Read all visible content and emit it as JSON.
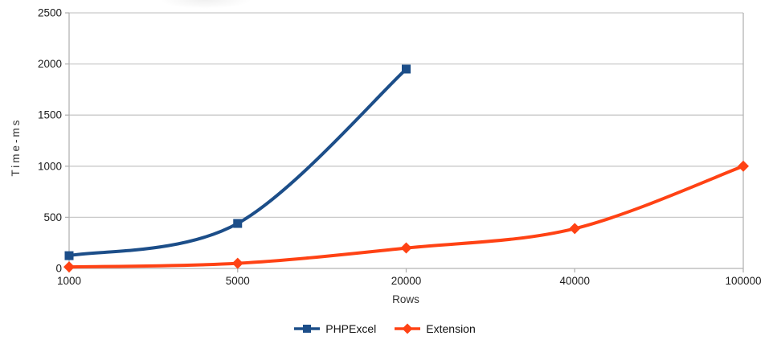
{
  "chart_data": {
    "type": "line",
    "title": "",
    "categories": [
      "1000",
      "5000",
      "20000",
      "40000",
      "100000"
    ],
    "series": [
      {
        "name": "PHPExcel",
        "color": "#1c4e89",
        "marker": "square",
        "values": [
          125,
          440,
          1950
        ]
      },
      {
        "name": "Extension",
        "color": "#ff4214",
        "marker": "diamond",
        "values": [
          15,
          50,
          200,
          390,
          1000
        ]
      }
    ],
    "xlabel": "Rows",
    "ylabel": "Time-ms",
    "ylim": [
      0,
      2500
    ],
    "yticks": [
      0,
      500,
      1000,
      1500,
      2000,
      2500
    ],
    "grid": "horizontal",
    "legend_position": "bottom",
    "smooth_lines": true
  },
  "colors": {
    "grid": "#c9c9c9",
    "axis": "#b3b3b3",
    "tick_text": "#1c1c1c"
  }
}
